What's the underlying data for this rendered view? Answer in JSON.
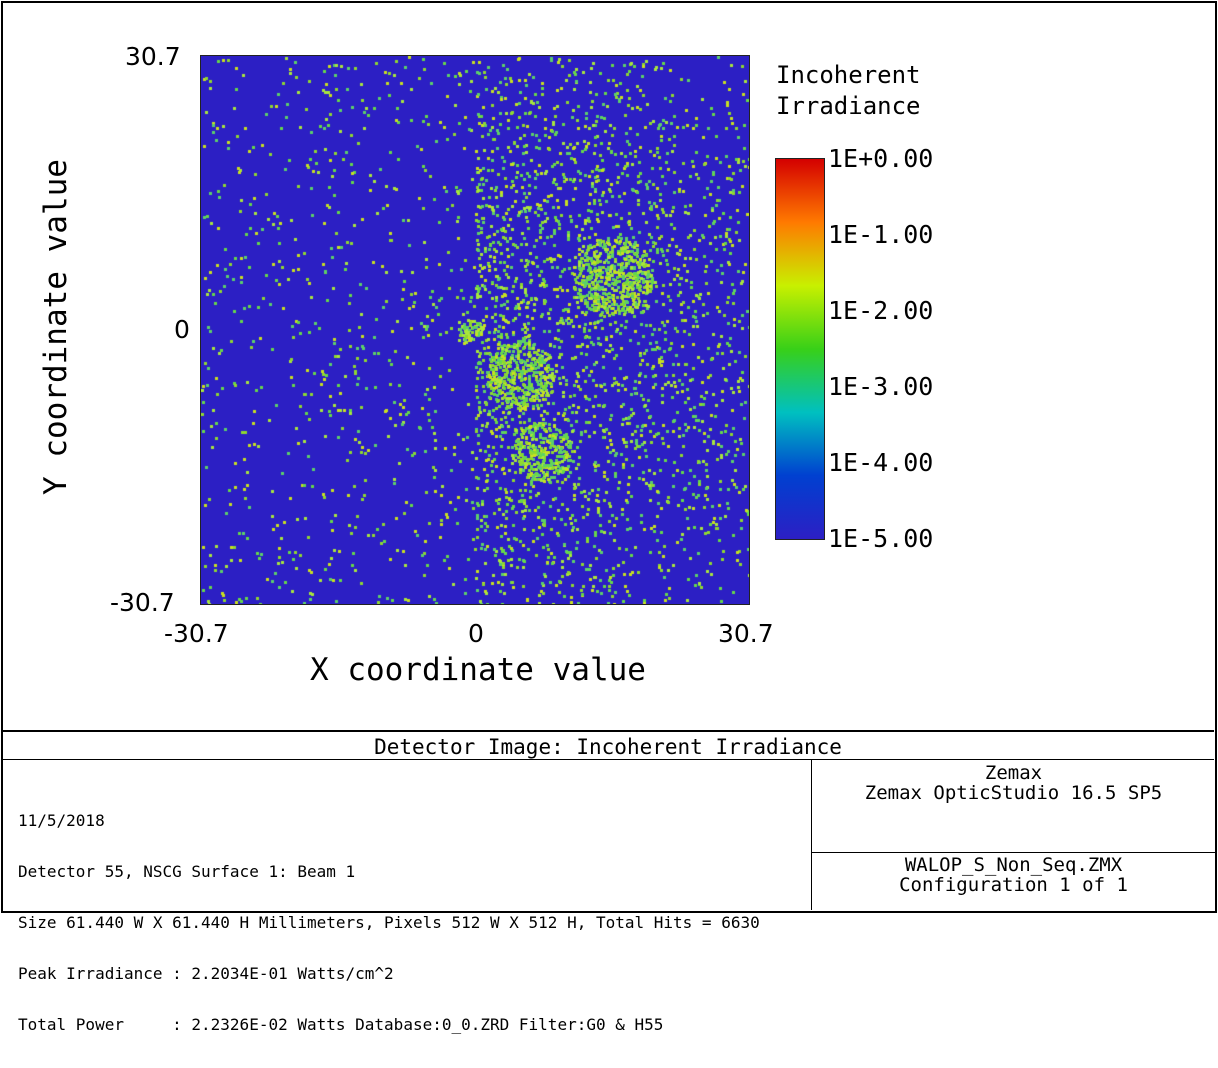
{
  "chart_data": {
    "type": "heatmap",
    "title": "",
    "xlabel": "X coordinate value",
    "ylabel": "Y coordinate value",
    "xlim": [
      -30.7,
      30.7
    ],
    "ylim": [
      -30.7,
      30.7
    ],
    "xticks": [
      "-30.7",
      "0",
      "30.7"
    ],
    "yticks": [
      "30.7",
      "0",
      "-30.7"
    ],
    "colorbar": {
      "title_lines": [
        "Incoherent",
        "Irradiance"
      ],
      "scale": "log",
      "labels": [
        "1E+0.00",
        "1E-1.00",
        "1E-2.00",
        "1E-3.00",
        "1E-4.00",
        "1E-5.00"
      ],
      "range": [
        -5,
        0
      ],
      "colors": [
        "#d40000",
        "#ff7a00",
        "#c8f000",
        "#38d018",
        "#00c0c0",
        "#0040d0",
        "#2c1fc4"
      ]
    },
    "background_color": "#2c1fc4",
    "hit_colors": [
      "#a8e63c",
      "#66d84a",
      "#5ccf6a",
      "#c8e020",
      "#8fd830"
    ]
  },
  "footer": {
    "title": "Detector Image: Incoherent Irradiance",
    "info_lines": [
      "11/5/2018",
      "Detector 55, NSCG Surface 1: Beam 1",
      "Size 61.440 W X 61.440 H Millimeters, Pixels 512 W X 512 H, Total Hits = 6630",
      "Peak Irradiance : 2.2034E-01 Watts/cm^2",
      "Total Power     : 2.2326E-02 Watts Database:0_0.ZRD Filter:G0 & H55"
    ],
    "company": "Zemax",
    "product": "Zemax OpticStudio 16.5 SP5",
    "filename": "WALOP_S_Non_Seq.ZMX",
    "configuration": "Configuration 1 of 1"
  }
}
